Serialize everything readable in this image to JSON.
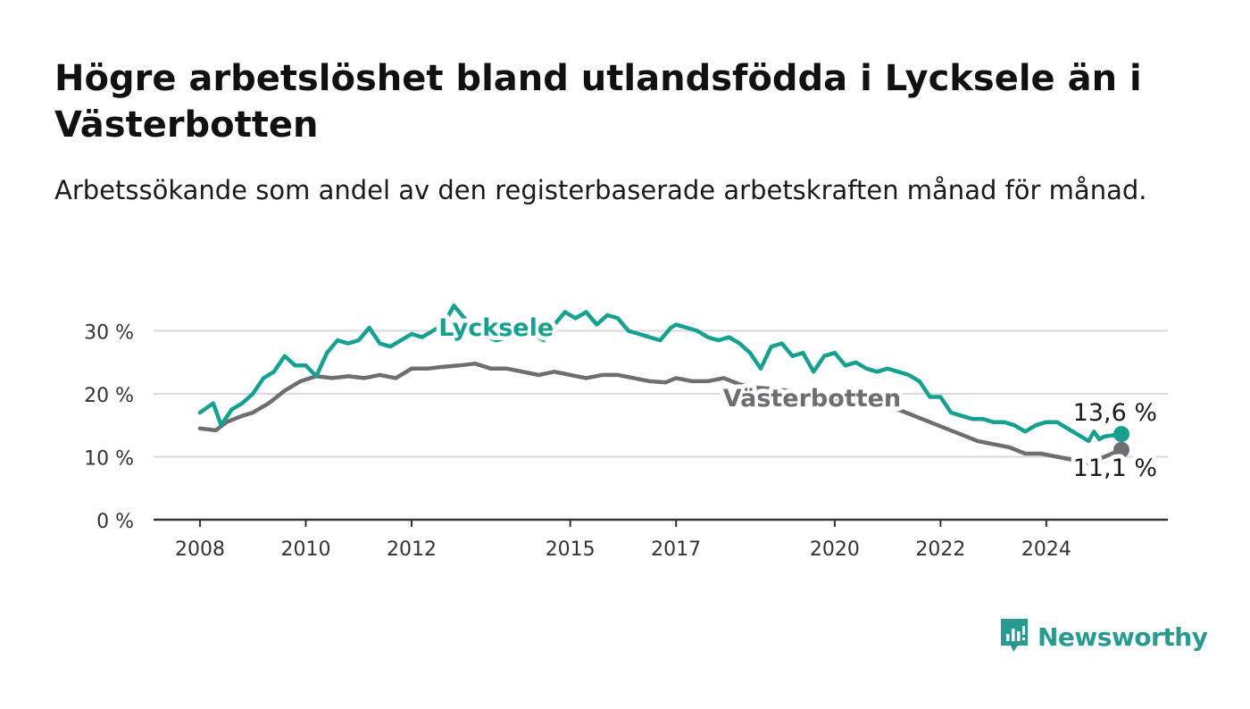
{
  "title": "Högre arbetslöshet bland utlandsfödda i Lycksele än i Västerbotten",
  "subtitle": "Arbetssökande som andel av den registerbaserade arbetskraften månad för månad.",
  "brand": {
    "name": "Newsworthy",
    "color": "#2a9a91"
  },
  "chart_data": {
    "type": "line",
    "title": "Högre arbetslöshet bland utlandsfödda i Lycksele än i Västerbotten",
    "subtitle": "Arbetssökande som andel av den registerbaserade arbetskraften månad för månad.",
    "xlabel": "",
    "ylabel": "",
    "x_range": [
      2008.0,
      2025.42
    ],
    "ylim": [
      0,
      32
    ],
    "y_ticks": [
      0,
      10,
      20,
      30
    ],
    "y_tick_labels": [
      "0 %",
      "10 %",
      "20 %",
      "30 %"
    ],
    "x_ticks": [
      2008,
      2010,
      2012,
      2015,
      2017,
      2020,
      2022,
      2024
    ],
    "x_tick_labels": [
      "2008",
      "2010",
      "2012",
      "2015",
      "2017",
      "2020",
      "2022",
      "2024"
    ],
    "grid": true,
    "legend": "direct labels on lines",
    "series": [
      {
        "name": "Lycksele",
        "color": "#16a090",
        "end_label": "13,6 %",
        "points": [
          [
            2008.0,
            17.0
          ],
          [
            2008.25,
            18.5
          ],
          [
            2008.4,
            15.0
          ],
          [
            2008.6,
            17.5
          ],
          [
            2008.8,
            18.5
          ],
          [
            2009.0,
            20.0
          ],
          [
            2009.2,
            22.5
          ],
          [
            2009.4,
            23.5
          ],
          [
            2009.6,
            26.0
          ],
          [
            2009.8,
            24.5
          ],
          [
            2010.0,
            24.5
          ],
          [
            2010.2,
            22.8
          ],
          [
            2010.4,
            26.5
          ],
          [
            2010.6,
            28.5
          ],
          [
            2010.8,
            28.0
          ],
          [
            2011.0,
            28.5
          ],
          [
            2011.2,
            30.5
          ],
          [
            2011.4,
            28.0
          ],
          [
            2011.6,
            27.5
          ],
          [
            2011.8,
            28.5
          ],
          [
            2012.0,
            29.5
          ],
          [
            2012.2,
            29.0
          ],
          [
            2012.4,
            30.0
          ],
          [
            2012.6,
            31.0
          ],
          [
            2012.8,
            34.0
          ],
          [
            2013.0,
            32.0
          ],
          [
            2013.3,
            29.5
          ],
          [
            2013.6,
            28.5
          ],
          [
            2013.9,
            29.0
          ],
          [
            2014.2,
            30.0
          ],
          [
            2014.5,
            28.5
          ],
          [
            2014.7,
            31.0
          ],
          [
            2014.9,
            33.0
          ],
          [
            2015.1,
            32.0
          ],
          [
            2015.3,
            33.0
          ],
          [
            2015.5,
            31.0
          ],
          [
            2015.7,
            32.5
          ],
          [
            2015.9,
            32.0
          ],
          [
            2016.1,
            30.0
          ],
          [
            2016.3,
            29.5
          ],
          [
            2016.5,
            29.0
          ],
          [
            2016.7,
            28.5
          ],
          [
            2016.9,
            30.5
          ],
          [
            2017.0,
            31.0
          ],
          [
            2017.2,
            30.5
          ],
          [
            2017.4,
            30.0
          ],
          [
            2017.6,
            29.0
          ],
          [
            2017.8,
            28.5
          ],
          [
            2018.0,
            29.0
          ],
          [
            2018.2,
            28.0
          ],
          [
            2018.4,
            26.5
          ],
          [
            2018.6,
            24.0
          ],
          [
            2018.8,
            27.5
          ],
          [
            2019.0,
            28.0
          ],
          [
            2019.2,
            26.0
          ],
          [
            2019.4,
            26.5
          ],
          [
            2019.6,
            23.5
          ],
          [
            2019.8,
            26.0
          ],
          [
            2020.0,
            26.5
          ],
          [
            2020.2,
            24.5
          ],
          [
            2020.4,
            25.0
          ],
          [
            2020.6,
            24.0
          ],
          [
            2020.8,
            23.5
          ],
          [
            2021.0,
            24.0
          ],
          [
            2021.2,
            23.5
          ],
          [
            2021.4,
            23.0
          ],
          [
            2021.6,
            22.0
          ],
          [
            2021.8,
            19.5
          ],
          [
            2022.0,
            19.5
          ],
          [
            2022.2,
            17.0
          ],
          [
            2022.4,
            16.5
          ],
          [
            2022.6,
            16.0
          ],
          [
            2022.8,
            16.0
          ],
          [
            2023.0,
            15.5
          ],
          [
            2023.2,
            15.5
          ],
          [
            2023.4,
            15.0
          ],
          [
            2023.6,
            14.0
          ],
          [
            2023.8,
            15.0
          ],
          [
            2024.0,
            15.5
          ],
          [
            2024.2,
            15.5
          ],
          [
            2024.4,
            14.5
          ],
          [
            2024.6,
            13.5
          ],
          [
            2024.8,
            12.5
          ],
          [
            2024.9,
            14.0
          ],
          [
            2025.0,
            12.8
          ],
          [
            2025.1,
            13.2
          ],
          [
            2025.42,
            13.6
          ]
        ]
      },
      {
        "name": "Västerbotten",
        "color": "#6e6d72",
        "end_label": "11,1 %",
        "points": [
          [
            2008.0,
            14.5
          ],
          [
            2008.3,
            14.2
          ],
          [
            2008.5,
            15.5
          ],
          [
            2008.8,
            16.5
          ],
          [
            2009.0,
            17.0
          ],
          [
            2009.3,
            18.5
          ],
          [
            2009.6,
            20.5
          ],
          [
            2009.9,
            22.0
          ],
          [
            2010.2,
            22.8
          ],
          [
            2010.5,
            22.5
          ],
          [
            2010.8,
            22.8
          ],
          [
            2011.1,
            22.5
          ],
          [
            2011.4,
            23.0
          ],
          [
            2011.7,
            22.5
          ],
          [
            2012.0,
            24.0
          ],
          [
            2012.3,
            24.0
          ],
          [
            2012.6,
            24.3
          ],
          [
            2012.9,
            24.5
          ],
          [
            2013.2,
            24.8
          ],
          [
            2013.5,
            24.0
          ],
          [
            2013.8,
            24.0
          ],
          [
            2014.1,
            23.5
          ],
          [
            2014.4,
            23.0
          ],
          [
            2014.7,
            23.5
          ],
          [
            2015.0,
            23.0
          ],
          [
            2015.3,
            22.5
          ],
          [
            2015.6,
            23.0
          ],
          [
            2015.9,
            23.0
          ],
          [
            2016.2,
            22.5
          ],
          [
            2016.5,
            22.0
          ],
          [
            2016.8,
            21.8
          ],
          [
            2017.0,
            22.5
          ],
          [
            2017.3,
            22.0
          ],
          [
            2017.6,
            22.0
          ],
          [
            2017.9,
            22.5
          ],
          [
            2018.2,
            21.5
          ],
          [
            2018.5,
            21.0
          ],
          [
            2018.8,
            20.8
          ],
          [
            2019.1,
            20.5
          ],
          [
            2019.4,
            20.0
          ],
          [
            2019.7,
            19.5
          ],
          [
            2020.0,
            19.0
          ],
          [
            2020.3,
            18.5
          ],
          [
            2020.6,
            18.5
          ],
          [
            2020.9,
            18.0
          ],
          [
            2021.2,
            17.5
          ],
          [
            2021.5,
            16.5
          ],
          [
            2021.8,
            15.5
          ],
          [
            2022.1,
            14.5
          ],
          [
            2022.4,
            13.5
          ],
          [
            2022.7,
            12.5
          ],
          [
            2023.0,
            12.0
          ],
          [
            2023.3,
            11.5
          ],
          [
            2023.6,
            10.5
          ],
          [
            2023.9,
            10.5
          ],
          [
            2024.2,
            10.0
          ],
          [
            2024.5,
            9.5
          ],
          [
            2024.8,
            9.0
          ],
          [
            2025.1,
            10.0
          ],
          [
            2025.42,
            11.1
          ]
        ]
      }
    ],
    "annotations": [
      {
        "text": "Lycksele",
        "series": "Lycksele"
      },
      {
        "text": "Västerbotten",
        "series": "Västerbotten"
      },
      {
        "text": "13,6 %",
        "series": "Lycksele"
      },
      {
        "text": "11,1 %",
        "series": "Västerbotten"
      }
    ]
  }
}
